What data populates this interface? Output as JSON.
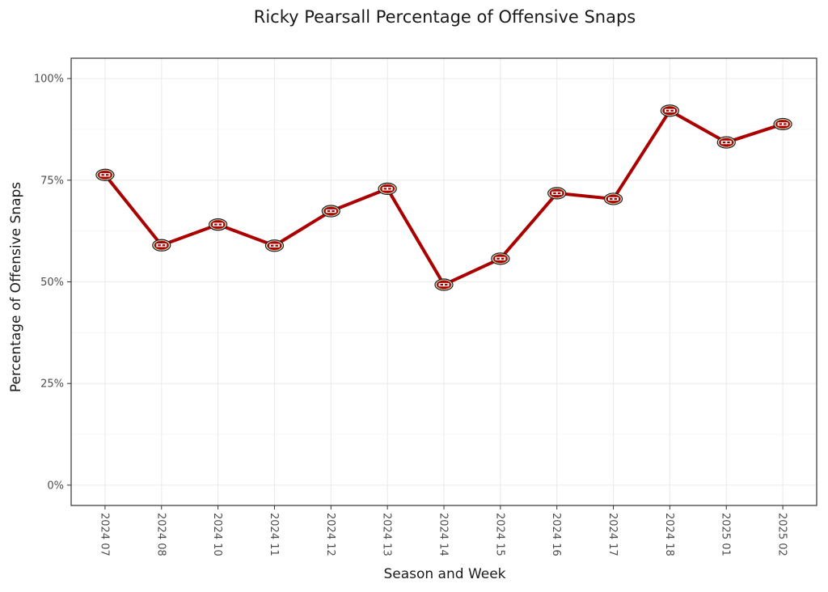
{
  "chart_data": {
    "type": "line",
    "title": "Ricky Pearsall Percentage of Offensive Snaps",
    "xlabel": "Season and Week",
    "ylabel": "Percentage of Offensive Snaps",
    "categories": [
      "2024 07",
      "2024 08",
      "2024 10",
      "2024 11",
      "2024 12",
      "2024 13",
      "2024 14",
      "2024 15",
      "2024 16",
      "2024 17",
      "2024 18",
      "2025 01",
      "2025 02"
    ],
    "values": [
      76.3,
      59.0,
      64.1,
      58.9,
      67.4,
      72.9,
      49.3,
      55.7,
      71.8,
      70.4,
      92.1,
      84.3,
      88.8
    ],
    "ylim": [
      -5,
      105
    ],
    "yticks": [
      0,
      25,
      50,
      75,
      100
    ],
    "ytick_labels": [
      "0%",
      "25%",
      "50%",
      "75%",
      "100%"
    ],
    "grid": true,
    "legend": "none",
    "line_color": "#aa0000",
    "marker": "49ers-logo-icon",
    "marker_color": "#aa0000",
    "marker_accent": "#b3995d"
  }
}
